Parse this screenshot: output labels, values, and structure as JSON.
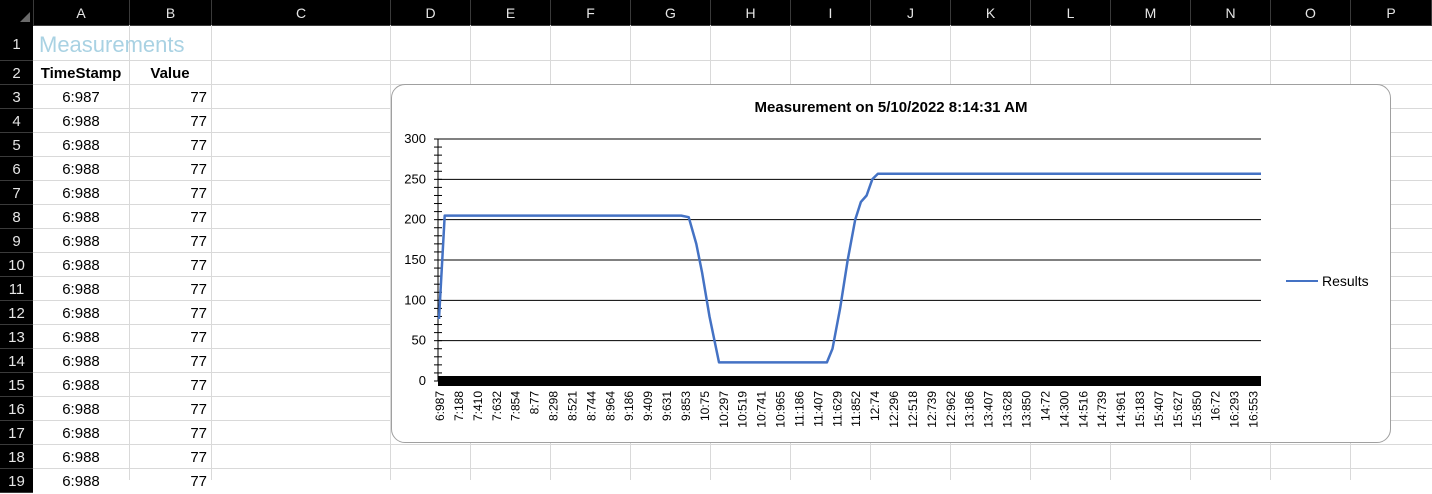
{
  "sheet": {
    "columns": [
      "A",
      "B",
      "C",
      "D",
      "E",
      "F",
      "G",
      "H",
      "I",
      "J",
      "K",
      "L",
      "M",
      "N",
      "O",
      "P"
    ],
    "rows": [
      "1",
      "2",
      "3",
      "4",
      "5",
      "6",
      "7",
      "8",
      "9",
      "10",
      "11",
      "12",
      "13",
      "14",
      "15",
      "16",
      "17",
      "18",
      "19"
    ],
    "title": "Measurements",
    "headers": {
      "timestamp": "TimeStamp",
      "value": "Value"
    },
    "data_rows": [
      {
        "ts": "6:987",
        "val": "77"
      },
      {
        "ts": "6:988",
        "val": "77"
      },
      {
        "ts": "6:988",
        "val": "77"
      },
      {
        "ts": "6:988",
        "val": "77"
      },
      {
        "ts": "6:988",
        "val": "77"
      },
      {
        "ts": "6:988",
        "val": "77"
      },
      {
        "ts": "6:988",
        "val": "77"
      },
      {
        "ts": "6:988",
        "val": "77"
      },
      {
        "ts": "6:988",
        "val": "77"
      },
      {
        "ts": "6:988",
        "val": "77"
      },
      {
        "ts": "6:988",
        "val": "77"
      },
      {
        "ts": "6:988",
        "val": "77"
      },
      {
        "ts": "6:988",
        "val": "77"
      },
      {
        "ts": "6:988",
        "val": "77"
      },
      {
        "ts": "6:988",
        "val": "77"
      },
      {
        "ts": "6:988",
        "val": "77"
      },
      {
        "ts": "6:988",
        "val": "77"
      }
    ],
    "colors": {
      "title": "#a9d2e3",
      "gridline": "#d9d9d9",
      "header_bg": "#000000"
    }
  },
  "chart_data": {
    "type": "line",
    "title": "Measurement on 5/10/2022 8:14:31 AM",
    "xlabel": "",
    "ylabel": "",
    "ylim": [
      0,
      300
    ],
    "yticks": [
      0,
      50,
      100,
      150,
      200,
      250,
      300
    ],
    "grid": true,
    "legend": "right",
    "x_tick_labels": [
      "6:987",
      "7:188",
      "7:410",
      "7:632",
      "7:854",
      "8:77",
      "8:298",
      "8:521",
      "8:744",
      "8:964",
      "9:186",
      "9:409",
      "9:631",
      "9:853",
      "10:75",
      "10:297",
      "10:519",
      "10:741",
      "10:965",
      "11:186",
      "11:407",
      "11:629",
      "11:852",
      "12:74",
      "12:296",
      "12:518",
      "12:739",
      "12:962",
      "13:186",
      "13:407",
      "13:628",
      "13:850",
      "14:72",
      "14:300",
      "14:516",
      "14:739",
      "14:961",
      "15:183",
      "15:407",
      "15:627",
      "15:850",
      "16:72",
      "16:293",
      "16:553"
    ],
    "series": [
      {
        "name": "Results",
        "color": "#4472c4",
        "x": [
          0,
          0.3,
          1,
          10,
          12.8,
          13.2,
          13.6,
          13.9,
          14.3,
          14.8,
          15.3,
          15.8,
          18,
          20.5,
          20.8,
          21.2,
          21.6,
          22,
          22.3,
          22.6,
          22.9,
          23.2,
          25,
          30,
          35,
          40,
          43.5
        ],
        "y": [
          77,
          205,
          205,
          205,
          205,
          203,
          170,
          135,
          80,
          23,
          23,
          23,
          23,
          23,
          40,
          90,
          150,
          200,
          222,
          230,
          250,
          257,
          257,
          257,
          257,
          257,
          257
        ]
      }
    ]
  }
}
